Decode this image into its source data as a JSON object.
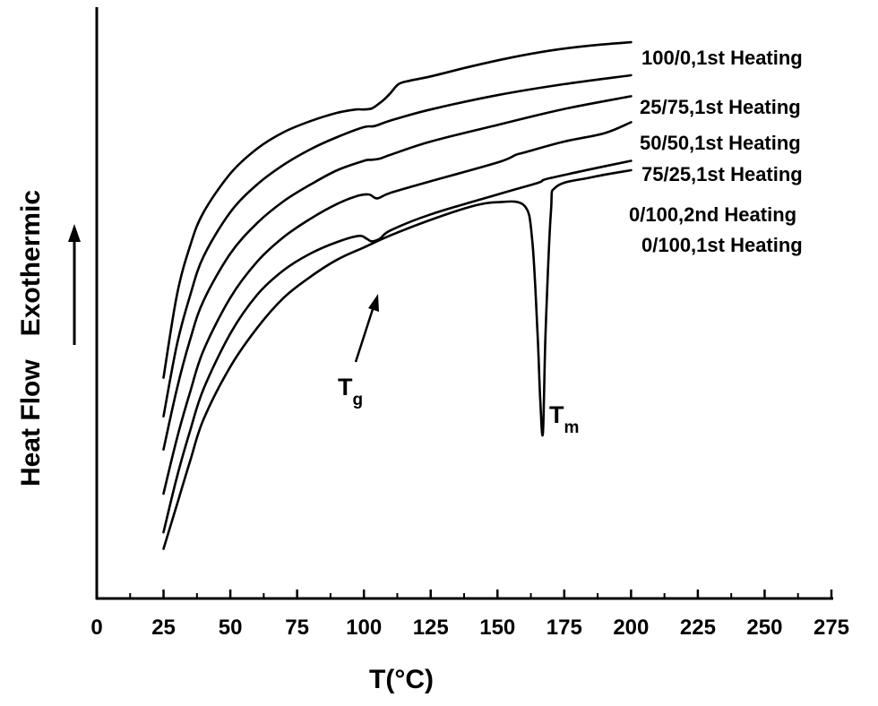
{
  "chart_data": {
    "type": "line",
    "xlabel": "T(°C)",
    "ylabel_parts": [
      "Heat Flow",
      "Exothermic"
    ],
    "xlim": [
      0,
      275
    ],
    "xticks": [
      0,
      25,
      50,
      75,
      100,
      125,
      150,
      175,
      200,
      225,
      250,
      275
    ],
    "y_tick_labels_shown": false,
    "y_units": "relative (arbitrary units, offset curves)",
    "ylim": [
      0,
      100
    ],
    "grid": false,
    "legend": "series labels at right end of each curve",
    "annotations": [
      {
        "label": "T",
        "subscript": "g",
        "x": 105,
        "note": "arrow pointing to glass transition"
      },
      {
        "label": "T",
        "subscript": "m",
        "x": 167,
        "note": "melting endotherm"
      }
    ],
    "arrow_direction": "up",
    "series": [
      {
        "name": "100/0,1st Heating",
        "x": [
          25,
          30,
          35,
          40,
          50,
          60,
          70,
          80,
          90,
          97,
          100,
          103,
          106,
          108,
          110,
          113,
          117,
          125,
          140,
          155,
          170,
          185,
          200
        ],
        "y": [
          40,
          55,
          64,
          70,
          77,
          81.5,
          84.5,
          86.5,
          88,
          88.6,
          88.6,
          88.8,
          89.8,
          90.6,
          91.6,
          93.2,
          93.8,
          94.6,
          96.4,
          98,
          99.3,
          100.2,
          100.8
        ]
      },
      {
        "name": "25/75,1st Heating",
        "x": [
          25,
          30,
          35,
          40,
          50,
          60,
          70,
          80,
          90,
          100,
          104,
          110,
          125,
          150,
          175,
          200
        ],
        "y": [
          33,
          46,
          55,
          62,
          70,
          75,
          78.6,
          81.4,
          83.6,
          85.4,
          85.6,
          86.6,
          88.6,
          91.2,
          93.2,
          94.8
        ]
      },
      {
        "name": "50/50,1st Heating",
        "x": [
          25,
          30,
          35,
          40,
          50,
          60,
          70,
          80,
          90,
          100,
          103,
          106,
          110,
          125,
          150,
          175,
          200
        ],
        "y": [
          27,
          38,
          47,
          54,
          62.5,
          68,
          72,
          75,
          77.6,
          79.3,
          79.5,
          79.7,
          80.4,
          82.8,
          85.8,
          88.7,
          91
        ]
      },
      {
        "name": "75/25,1st Heating",
        "x": [
          25,
          30,
          35,
          40,
          50,
          60,
          70,
          80,
          90,
          98,
          102,
          105,
          110,
          125,
          150,
          157,
          160,
          175,
          190,
          200
        ],
        "y": [
          19,
          29,
          37.5,
          45,
          54.5,
          61,
          65.5,
          68.8,
          71.5,
          73,
          73.2,
          72.5,
          73.5,
          75.6,
          79,
          80.4,
          80.8,
          82.8,
          84.3,
          86.3
        ]
      },
      {
        "name": "0/100,2nd Heating",
        "x": [
          25,
          30,
          35,
          40,
          50,
          60,
          70,
          80,
          90,
          98,
          101,
          103,
          106,
          110,
          125,
          150,
          165,
          167,
          170,
          185,
          200
        ],
        "y": [
          12,
          22,
          30.5,
          38,
          48,
          55,
          59.5,
          62.5,
          64.6,
          65.7,
          65.2,
          64.7,
          65.2,
          66.7,
          69.6,
          73.2,
          75.3,
          75.8,
          76.2,
          77.8,
          79.3
        ]
      },
      {
        "name": "0/100,1st Heating",
        "x": [
          25,
          30,
          35,
          40,
          50,
          60,
          70,
          80,
          90,
          100,
          110,
          125,
          140,
          150,
          160,
          163,
          165,
          166,
          167,
          168,
          170,
          172,
          185,
          200
        ],
        "y": [
          9,
          17,
          25,
          32.5,
          42,
          49,
          54.5,
          58.3,
          61.4,
          63.6,
          65.8,
          68.6,
          71,
          71.8,
          71.2,
          65,
          48,
          36,
          30,
          48,
          70,
          74.6,
          76.3,
          77.6
        ]
      }
    ]
  }
}
